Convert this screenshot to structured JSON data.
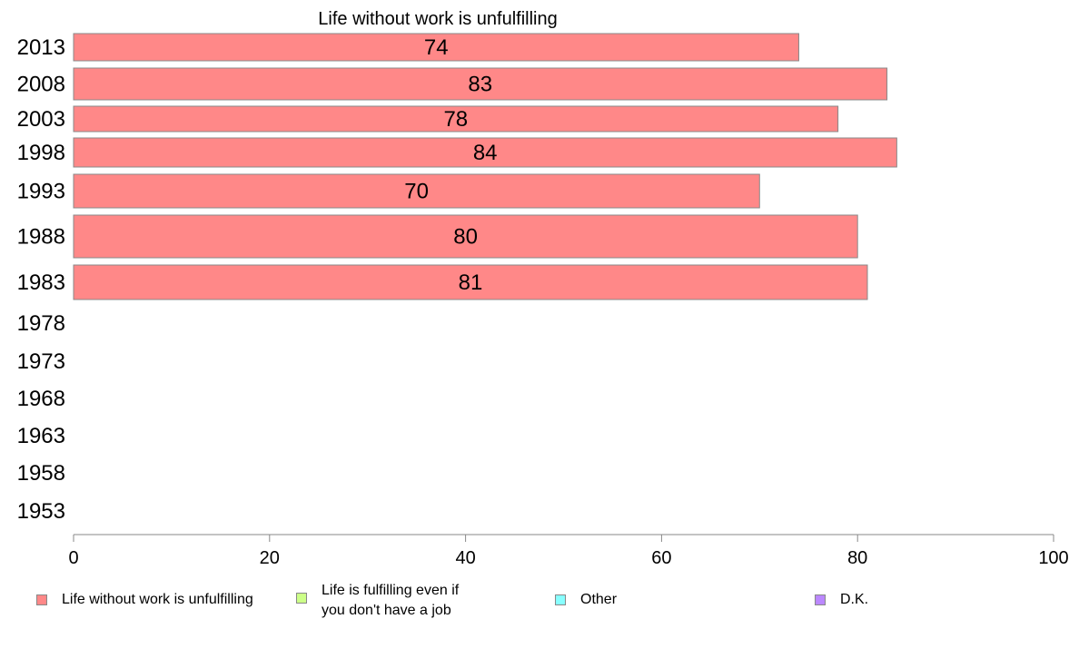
{
  "chart_data": {
    "type": "bar",
    "orientation": "horizontal",
    "title": "Life without work is unfulfilling",
    "categories": [
      "2013",
      "2008",
      "2003",
      "1998",
      "1993",
      "1988",
      "1983",
      "1978",
      "1973",
      "1968",
      "1963",
      "1958",
      "1953"
    ],
    "series": [
      {
        "name": "Life without work is unfulfilling",
        "color": "#ff8888",
        "values": [
          74,
          83,
          78,
          84,
          70,
          80,
          81,
          null,
          null,
          null,
          null,
          null,
          null
        ],
        "data_labels": [
          "74",
          "83",
          "78",
          "84",
          "70",
          "80",
          "81",
          "",
          "",
          "",
          "",
          "",
          ""
        ]
      }
    ],
    "xlim": [
      0,
      100
    ],
    "xticks": [
      "0",
      "20",
      "40",
      "60",
      "80",
      "100"
    ],
    "grid": false,
    "legend_position": "bottom"
  },
  "legend": {
    "items": [
      {
        "label": "Life without work is unfulfilling",
        "color": "#ff8888"
      },
      {
        "label": "Life is fulfilling even if\nyou don't have a job",
        "color": "#ccff88"
      },
      {
        "label": "Other",
        "color": "#88ffff"
      },
      {
        "label": "D.K.",
        "color": "#bb88ff"
      }
    ]
  }
}
